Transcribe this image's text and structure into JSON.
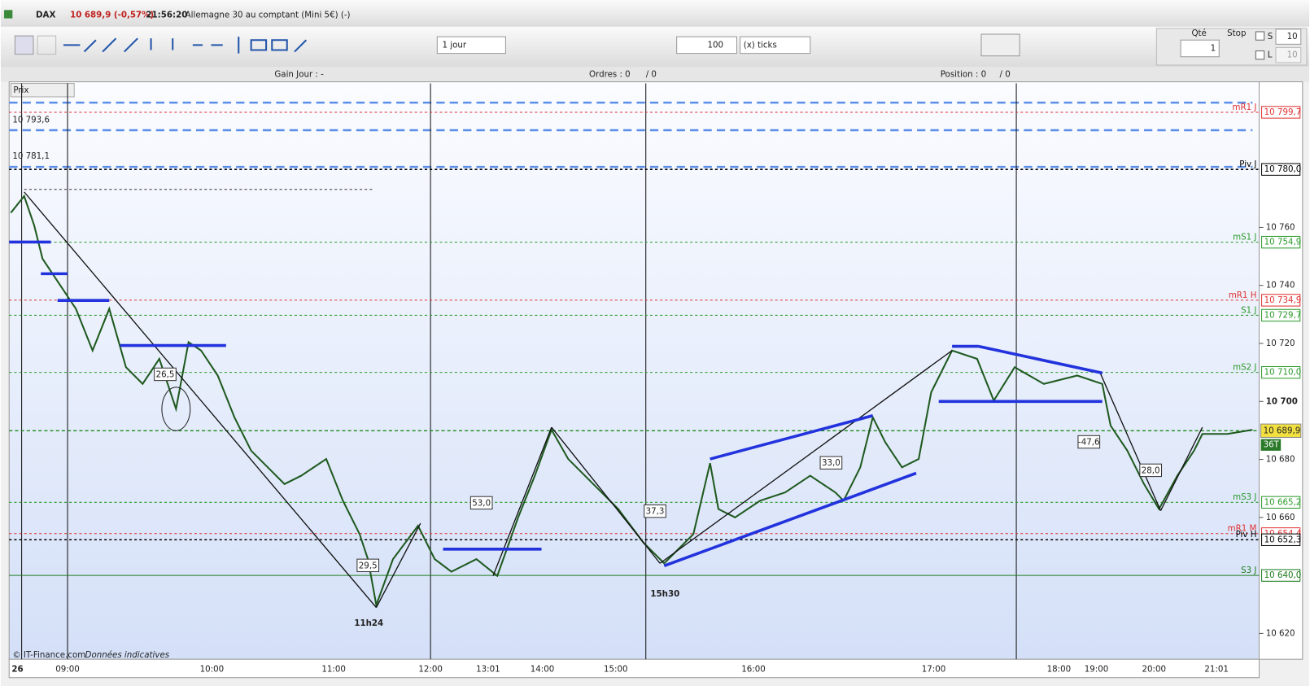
{
  "header": {
    "instrument": "DAX",
    "price": "10 689,9 (-0,57%)",
    "time": "21:56:20",
    "description": "Allemagne 30 au comptant (Mini 5€) (-)"
  },
  "toolbar": {
    "period": "1 jour",
    "ticks": "100",
    "ticks_unit": "(x) ticks",
    "qty_label": "Qté",
    "qty": "1",
    "stop_label": "Stop",
    "s_label": "S",
    "s_value": "10",
    "l_label": "L",
    "l_value": "10"
  },
  "status": {
    "gain": "Gain Jour : -",
    "orders": "Ordres : 0",
    "orders_sep": "/ 0",
    "position": "Position : 0",
    "position_sep": "/ 0"
  },
  "chart": {
    "panel_label": "Prix",
    "price_ticks": [
      {
        "value": 10620,
        "label": "10 620"
      },
      {
        "value": 10660,
        "label": "10 660"
      },
      {
        "value": 10680,
        "label": "10 680"
      },
      {
        "value": 10700,
        "label": "10 700"
      },
      {
        "value": 10720,
        "label": "10 720"
      },
      {
        "value": 10740,
        "label": "10 740"
      },
      {
        "value": 10760,
        "label": "10 760"
      }
    ],
    "levels": [
      {
        "name": "mR1 J",
        "value": 10799.7,
        "label": "10 799,7",
        "color": "#e03030"
      },
      {
        "name": "Piv J",
        "value": 10780.0,
        "label": "10 780,0",
        "color": "#000000"
      },
      {
        "name": "mS1 J",
        "value": 10754.9,
        "label": "10 754,9",
        "color": "#2a9a2a"
      },
      {
        "name": "mR1 H",
        "value": 10734.9,
        "label": "10 734,9",
        "color": "#e03030"
      },
      {
        "name": "S1 J",
        "value": 10729.7,
        "label": "10 729,7",
        "color": "#2a9a2a"
      },
      {
        "name": "mS2 J",
        "value": 10710.0,
        "label": "10 710,0",
        "color": "#2a9a2a"
      },
      {
        "name": "mS3 J",
        "value": 10665.2,
        "label": "10 665,2",
        "color": "#2a9a2a"
      },
      {
        "name": "mR1 M",
        "value": 10654.4,
        "label": "10 654,4",
        "color": "#e03030"
      },
      {
        "name": "Piv H",
        "value": 10652.3,
        "label": "10 652,3",
        "color": "#000000"
      },
      {
        "name": "S3 J",
        "value": 10640.0,
        "label": "10 640,0",
        "color": "#1a7a1a"
      }
    ],
    "current_price": {
      "value": 10689.9,
      "label": "10 689,9"
    },
    "volume": "36T",
    "left_labels": [
      {
        "value": 10793.6,
        "label": "10 793,6"
      },
      {
        "value": 10781.1,
        "label": "10 781,1"
      }
    ],
    "time_labels": [
      "26",
      "09:00",
      "10:00",
      "11:00",
      "12:00",
      "13:01",
      "14:00",
      "15:00",
      "16:00",
      "17:00",
      "18:00",
      "19:00",
      "20:00",
      "21:01"
    ],
    "annotations": [
      "11h24",
      "15h30"
    ],
    "boxes": [
      "26,5",
      "29,5",
      "53,0",
      "37,3",
      "33,0",
      "-47,6",
      "28,0"
    ],
    "footer": "© IT-Finance.com",
    "footer_note": "Données indicatives"
  }
}
